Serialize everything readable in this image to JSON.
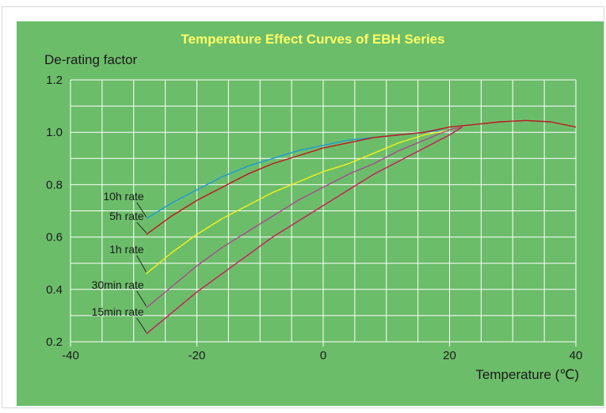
{
  "chart_data": {
    "type": "line",
    "title": "Temperature Effect Curves of EBH Series",
    "xlabel": "Temperature (℃)",
    "ylabel": "De-rating factor",
    "xlim": [
      -40,
      40
    ],
    "ylim": [
      0.2,
      1.2
    ],
    "x_ticks": [
      -40,
      -20,
      0,
      20,
      40
    ],
    "y_ticks": [
      0.2,
      0.4,
      0.6,
      0.8,
      1.0,
      1.2
    ],
    "x_tick_labels": [
      "-40",
      "-20",
      "0",
      "20",
      "40"
    ],
    "y_tick_labels": [
      "0.2",
      "0.4",
      "0.6",
      "0.8",
      "1.0",
      "1.2"
    ],
    "grid": true,
    "colors": {
      "background": "#6cbd6a",
      "grid": "#ffffff",
      "title": "#ffff66"
    },
    "series": [
      {
        "name": "10h rate",
        "color": "#1e9ad6",
        "x": [
          -28,
          -24,
          -20,
          -16,
          -12,
          -8,
          -4,
          0,
          4,
          8,
          12,
          16,
          20,
          22
        ],
        "y": [
          0.67,
          0.73,
          0.78,
          0.83,
          0.87,
          0.9,
          0.93,
          0.95,
          0.97,
          0.98,
          0.99,
          1.0,
          1.01,
          1.02
        ]
      },
      {
        "name": "5h rate",
        "color": "#c0141e",
        "x": [
          -28,
          -24,
          -20,
          -16,
          -12,
          -8,
          -4,
          0,
          4,
          8,
          12,
          16,
          20,
          22,
          24,
          28,
          32,
          36,
          40
        ],
        "y": [
          0.61,
          0.68,
          0.74,
          0.79,
          0.84,
          0.88,
          0.91,
          0.94,
          0.96,
          0.98,
          0.99,
          1.0,
          1.02,
          1.025,
          1.03,
          1.04,
          1.045,
          1.04,
          1.02
        ]
      },
      {
        "name": "1h rate",
        "color": "#f2f21a",
        "x": [
          -28,
          -24,
          -20,
          -16,
          -12,
          -8,
          -4,
          0,
          4,
          8,
          12,
          16,
          20,
          22
        ],
        "y": [
          0.46,
          0.54,
          0.61,
          0.67,
          0.72,
          0.77,
          0.81,
          0.85,
          0.88,
          0.92,
          0.96,
          0.99,
          1.01,
          1.02
        ]
      },
      {
        "name": "30min rate",
        "color": "#a84a8c",
        "x": [
          -28,
          -24,
          -20,
          -16,
          -12,
          -8,
          -4,
          0,
          4,
          8,
          12,
          16,
          20,
          22
        ],
        "y": [
          0.33,
          0.41,
          0.49,
          0.56,
          0.62,
          0.68,
          0.74,
          0.79,
          0.84,
          0.88,
          0.93,
          0.97,
          1.01,
          1.02
        ]
      },
      {
        "name": "15min rate",
        "color": "#c81a5a",
        "x": [
          -28,
          -24,
          -20,
          -16,
          -12,
          -8,
          -4,
          0,
          4,
          8,
          12,
          16,
          20,
          22
        ],
        "y": [
          0.23,
          0.31,
          0.39,
          0.46,
          0.53,
          0.6,
          0.66,
          0.72,
          0.78,
          0.84,
          0.89,
          0.94,
          0.99,
          1.02
        ]
      }
    ]
  }
}
